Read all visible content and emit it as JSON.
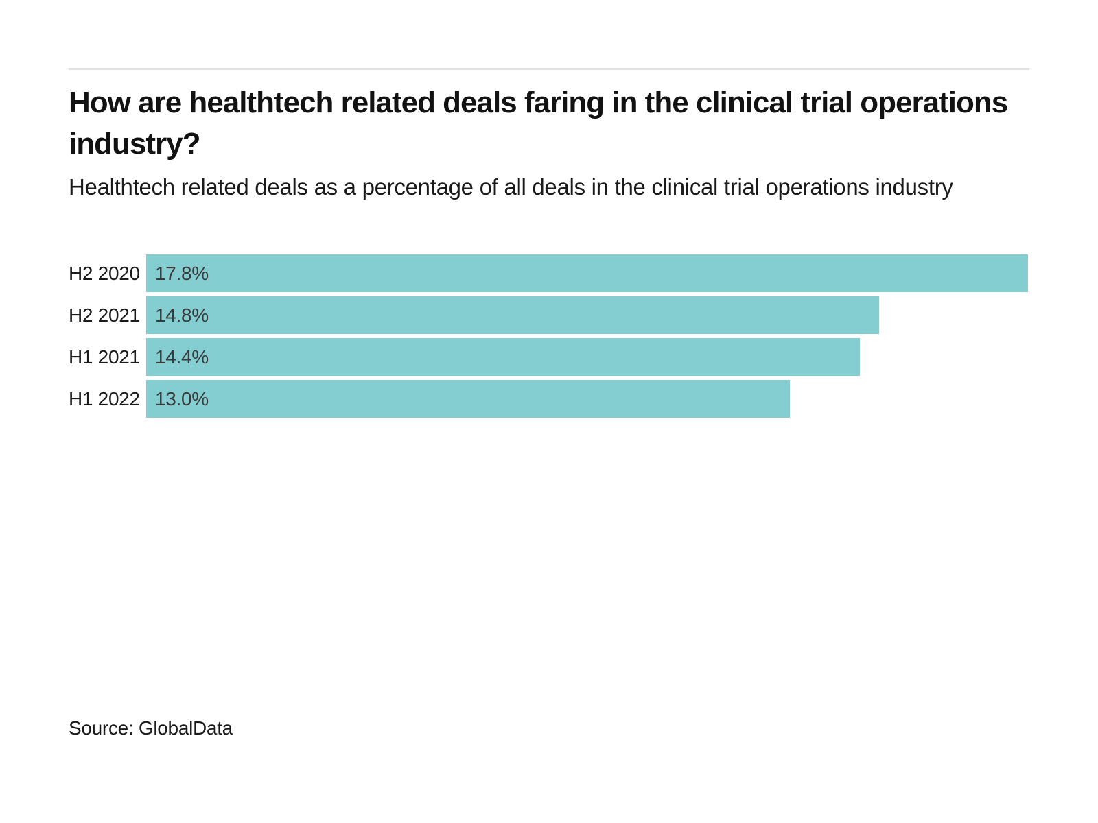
{
  "page": {
    "title": "How are healthtech related deals faring in the clinical trial operations industry?",
    "subtitle": "Healthtech related deals as a percentage of all deals in the clinical trial operations industry",
    "source": "Source: GlobalData"
  },
  "chart_data": {
    "type": "bar",
    "orientation": "horizontal",
    "title": "How are healthtech related deals faring in the clinical trial operations industry?",
    "subtitle": "Healthtech related deals as a percentage of all deals in the clinical trial operations industry",
    "source": "Source: GlobalData",
    "categories": [
      "H2 2020",
      "H2 2021",
      "H1 2021",
      "H1 2022"
    ],
    "values": [
      17.8,
      14.8,
      14.4,
      13.0
    ],
    "value_labels": [
      "17.8%",
      "14.8%",
      "14.4%",
      "13.0%"
    ],
    "xlabel": "",
    "ylabel": "",
    "xlim": [
      0,
      17.8
    ],
    "grid": false,
    "legend": "none",
    "bar_color": "#84ced2",
    "value_label_color": "#3a3a3a",
    "category_label_color": "#1a1a1a"
  }
}
